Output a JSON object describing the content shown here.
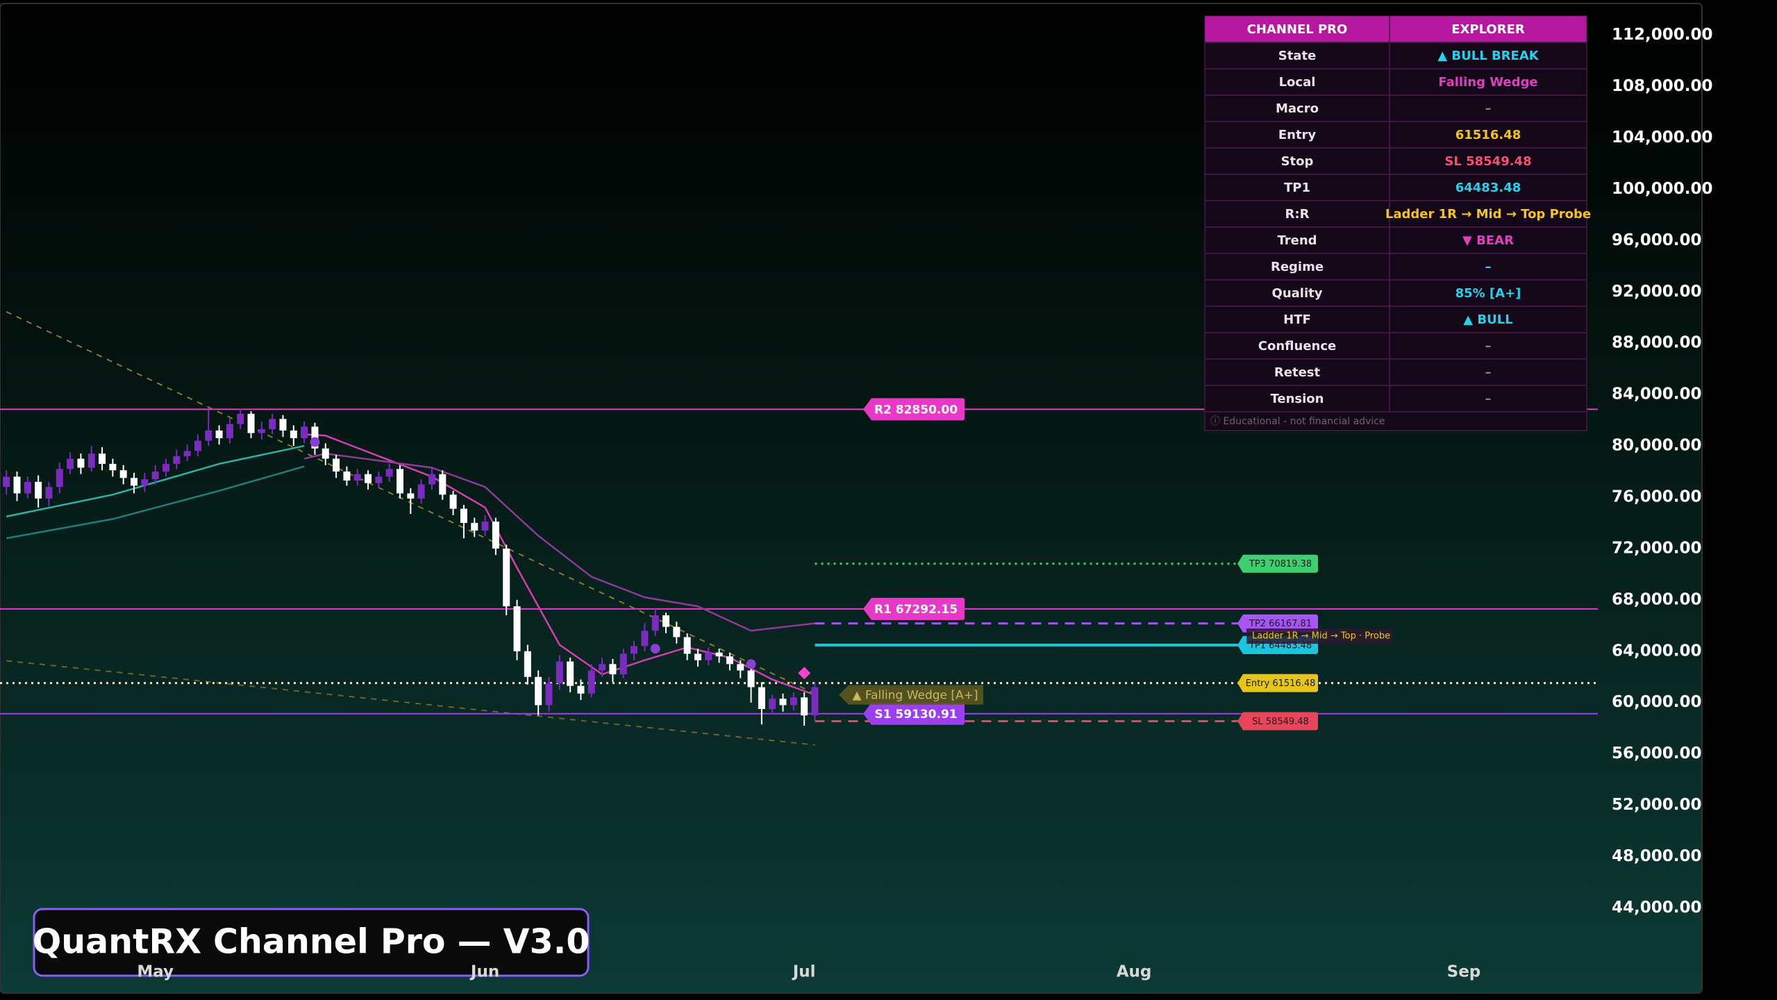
{
  "chart_data": {
    "type": "candlestick",
    "xlim": [
      -0.6,
      149.6
    ],
    "xticks": [
      {
        "value": 14,
        "label": "May"
      },
      {
        "value": 45,
        "label": "Jun"
      },
      {
        "value": 75,
        "label": "Jul"
      },
      {
        "value": 106,
        "label": "Aug"
      },
      {
        "value": 137,
        "label": "Sep"
      }
    ],
    "ylim": [
      40560,
      114740
    ],
    "yticks": [
      {
        "value": 112000,
        "label": "112,000.00"
      },
      {
        "value": 108000,
        "label": "108,000.00"
      },
      {
        "value": 104000,
        "label": "104,000.00"
      },
      {
        "value": 100000,
        "label": "100,000.00"
      },
      {
        "value": 96000,
        "label": "96,000.00"
      },
      {
        "value": 92000,
        "label": "92,000.00"
      },
      {
        "value": 88000,
        "label": "88,000.00"
      },
      {
        "value": 84000,
        "label": "84,000.00"
      },
      {
        "value": 80000,
        "label": "80,000.00"
      },
      {
        "value": 76000,
        "label": "76,000.00"
      },
      {
        "value": 72000,
        "label": "72,000.00"
      },
      {
        "value": 68000,
        "label": "68,000.00"
      },
      {
        "value": 64000,
        "label": "64,000.00"
      },
      {
        "value": 60000,
        "label": "60,000.00"
      },
      {
        "value": 56000,
        "label": "56,000.00"
      },
      {
        "value": 52000,
        "label": "52,000.00"
      },
      {
        "value": 48000,
        "label": "48,000.00"
      },
      {
        "value": 44000,
        "label": "44,000.00"
      }
    ],
    "candles": {
      "up_color": "#7b2cbf",
      "down_color": "#ffffff",
      "x": [
        0,
        1,
        2,
        3,
        4,
        5,
        6,
        7,
        8,
        9,
        10,
        11,
        12,
        13,
        14,
        15,
        16,
        17,
        18,
        19,
        20,
        21,
        22,
        23,
        24,
        25,
        26,
        27,
        28,
        29,
        30,
        31,
        32,
        33,
        34,
        35,
        36,
        37,
        38,
        39,
        40,
        41,
        42,
        43,
        44,
        45,
        46,
        47,
        48,
        49,
        50,
        51,
        52,
        53,
        54,
        55,
        56,
        57,
        58,
        59,
        60,
        61,
        62,
        63,
        64,
        65,
        66,
        67,
        68,
        69,
        70,
        71,
        72,
        73,
        74,
        75,
        76
      ],
      "open": [
        76800,
        77600,
        76300,
        77200,
        75900,
        76800,
        78200,
        79000,
        78300,
        79400,
        78600,
        78100,
        77500,
        76900,
        77400,
        78000,
        78600,
        79200,
        79600,
        80400,
        81200,
        80600,
        81700,
        82500,
        81000,
        81300,
        82100,
        81200,
        80600,
        81500,
        79800,
        79000,
        78000,
        77300,
        77800,
        77100,
        77600,
        78200,
        76300,
        75900,
        77000,
        77800,
        76200,
        75100,
        74000,
        73400,
        74100,
        72000,
        67500,
        64000,
        62000,
        59800,
        61500,
        63200,
        61300,
        60700,
        62500,
        63000,
        62200,
        63800,
        64400,
        65600,
        66800,
        65900,
        65100,
        63800,
        63300,
        63900,
        63600,
        63000,
        62500,
        61200,
        59500,
        60300,
        59800,
        60400,
        59000
      ],
      "high": [
        78100,
        78000,
        77600,
        77700,
        77200,
        78700,
        79500,
        79400,
        80000,
        79900,
        79000,
        78500,
        77900,
        77900,
        78500,
        79000,
        79700,
        80100,
        80900,
        82800,
        81600,
        82200,
        82900,
        82700,
        81900,
        82500,
        82400,
        81600,
        81900,
        81800,
        80200,
        79300,
        78400,
        78200,
        78100,
        78000,
        78600,
        78500,
        76700,
        77400,
        78400,
        78100,
        76500,
        75400,
        74400,
        74600,
        74400,
        72300,
        68000,
        64500,
        62500,
        62000,
        63700,
        63500,
        61800,
        63000,
        63500,
        63400,
        64200,
        64800,
        66200,
        67300,
        67000,
        66300,
        65400,
        64200,
        64300,
        64200,
        63900,
        63300,
        62800,
        61600,
        60600,
        60700,
        60800,
        60800,
        61600
      ],
      "low": [
        76200,
        75700,
        75900,
        75200,
        75300,
        76300,
        77800,
        77800,
        78000,
        78100,
        77600,
        77000,
        76300,
        76400,
        77000,
        77600,
        78200,
        78800,
        79200,
        80000,
        80100,
        80200,
        81300,
        80600,
        80500,
        80900,
        80700,
        80000,
        80200,
        79300,
        78500,
        77500,
        76900,
        76900,
        76600,
        76700,
        77200,
        75900,
        74700,
        75500,
        76600,
        75800,
        74600,
        72800,
        72900,
        73000,
        71500,
        66800,
        63300,
        61400,
        59000,
        59300,
        61000,
        60800,
        60200,
        60400,
        62000,
        61600,
        61900,
        63300,
        64000,
        65200,
        65400,
        64600,
        63300,
        62800,
        62900,
        63100,
        62500,
        61900,
        60000,
        58300,
        59100,
        59300,
        59400,
        58200,
        58600
      ],
      "close": [
        77600,
        76300,
        77200,
        75900,
        76800,
        78200,
        79000,
        78300,
        79400,
        78600,
        78100,
        77500,
        76900,
        77400,
        78000,
        78600,
        79200,
        79600,
        80400,
        81200,
        80600,
        81700,
        82500,
        81000,
        81300,
        82100,
        81200,
        80600,
        81500,
        79800,
        79000,
        78000,
        77300,
        77800,
        77100,
        77600,
        78200,
        76300,
        75900,
        77000,
        77800,
        76200,
        75100,
        74000,
        73400,
        74100,
        72000,
        67500,
        64000,
        62000,
        59800,
        61500,
        63200,
        61300,
        60700,
        62500,
        63000,
        62200,
        63800,
        64400,
        65600,
        66800,
        65900,
        65100,
        63800,
        63300,
        63900,
        63600,
        63000,
        62500,
        61200,
        59500,
        60300,
        59800,
        60400,
        59000,
        61200
      ]
    },
    "lines": [
      {
        "color": "#2bb3a3",
        "x": [
          0,
          10,
          20,
          28
        ],
        "values": [
          74500,
          76200,
          78600,
          80000
        ]
      },
      {
        "color": "#1f7f78",
        "x": [
          0,
          10,
          20,
          28
        ],
        "values": [
          72800,
          74300,
          76500,
          78400
        ]
      },
      {
        "color": "#d23fae",
        "x": [
          28,
          30,
          35,
          40,
          45,
          48,
          52,
          56,
          60,
          64,
          68,
          72,
          76
        ],
        "values": [
          80900,
          80800,
          79200,
          77600,
          75200,
          70500,
          64500,
          62200,
          63300,
          64300,
          63500,
          61800,
          60600
        ]
      },
      {
        "color": "#8e3a9a",
        "x": [
          28,
          30,
          40,
          45,
          50,
          55,
          60,
          65,
          70,
          76
        ],
        "values": [
          79000,
          79400,
          78300,
          76800,
          73000,
          69800,
          68200,
          67500,
          65600,
          66170
        ]
      }
    ],
    "wedge": [
      {
        "color": "#8a7a2a",
        "x": [
          0,
          76
        ],
        "values": [
          90450,
          60700
        ]
      },
      {
        "color": "#6e6428",
        "x": [
          0,
          76
        ],
        "values": [
          63260,
          56700
        ]
      }
    ],
    "markers": [
      {
        "shape": "circle",
        "color": "#8b3fd0",
        "x": 29,
        "value": 80300
      },
      {
        "shape": "circle",
        "color": "#8b3fd0",
        "x": 61,
        "value": 64200
      },
      {
        "shape": "circle",
        "color": "#8b3fd0",
        "x": 70,
        "value": 63000
      },
      {
        "shape": "diamond",
        "color": "#ff3fd0",
        "x": 75,
        "value": 62300
      }
    ],
    "levels": [
      {
        "label": "R2 82850.00",
        "value": 82850,
        "color": "#e838c8"
      },
      {
        "label": "R1 67292.15",
        "value": 67292.15,
        "color": "#e838c8"
      },
      {
        "label": "S1 59130.91",
        "value": 59130.91,
        "color": "#9b3ff0"
      }
    ],
    "targets": [
      {
        "label": "TP3 70819.38",
        "value": 70819.38,
        "color": "#3ecf6e",
        "style": "dotted",
        "span": "forward"
      },
      {
        "label": "TP2 66167.81",
        "value": 66167.81,
        "color": "#a855f7",
        "style": "dashed",
        "span": "forward"
      },
      {
        "label": "TP1 64483.48",
        "value": 64483.48,
        "color": "#19c6e0",
        "style": "solid",
        "span": "forward"
      },
      {
        "label": "Entry 61516.48",
        "value": 61516.48,
        "color": "#e6c619",
        "style": "dotted",
        "span": "full"
      },
      {
        "label": "SL 58549.48",
        "value": 58549.48,
        "color": "#e8455a",
        "style": "dashed",
        "span": "forward"
      }
    ],
    "pattern_label": "▲ Falling Wedge [A+]",
    "ladder_label": "Ladder 1R → Mid → Top · Probe"
  },
  "table": {
    "header": [
      "CHANNEL PRO",
      "EXPLORER"
    ],
    "rows": [
      {
        "label": "State",
        "value": "▲ BULL BREAK",
        "color": "#22d3ee"
      },
      {
        "label": "Local",
        "value": "Falling Wedge",
        "color": "#e040c0"
      },
      {
        "label": "Macro",
        "value": "–",
        "color": "#8a7f8a"
      },
      {
        "label": "Entry",
        "value": "61516.48",
        "color": "#f5c518"
      },
      {
        "label": "Stop",
        "value": "SL 58549.48",
        "color": "#ff4d6d"
      },
      {
        "label": "TP1",
        "value": "64483.48",
        "color": "#22d3ee"
      },
      {
        "label": "R:R",
        "value": "Ladder 1R → Mid → Top  Probe",
        "color": "#f5c518"
      },
      {
        "label": "Trend",
        "value": "▼ BEAR",
        "color": "#e040c0"
      },
      {
        "label": "Regime",
        "value": "–",
        "color": "#22d3ee"
      },
      {
        "label": "Quality",
        "value": "85% [A+]",
        "color": "#22d3ee"
      },
      {
        "label": "HTF",
        "value": "▲ BULL",
        "color": "#22d3ee"
      },
      {
        "label": "Confluence",
        "value": "–",
        "color": "#8a7f8a"
      },
      {
        "label": "Retest",
        "value": "–",
        "color": "#8a7f8a"
      },
      {
        "label": "Tension",
        "value": "–",
        "color": "#8a7f8a"
      }
    ],
    "footer": "ⓘ Educational - not financial advice"
  },
  "badge": "QuantRX Channel Pro — V3.0"
}
